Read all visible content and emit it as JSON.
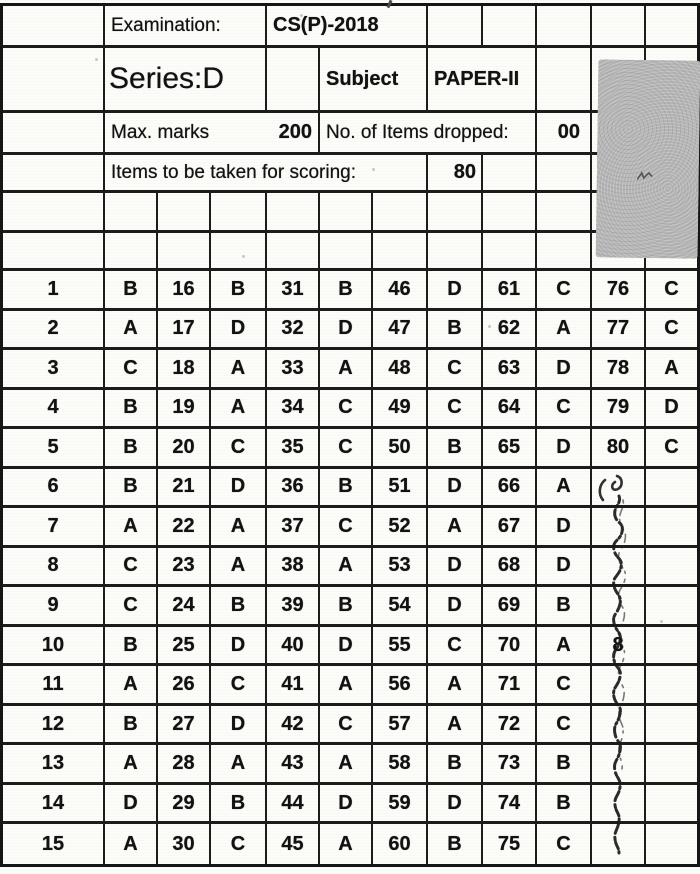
{
  "header": {
    "examination_label": "Examination:",
    "examination_value": "CS(P)-2018",
    "series_label": "Series:D",
    "subject_label": "Subject",
    "subject_value": "PAPER-II",
    "max_marks_label": "Max. marks",
    "max_marks_value": "200",
    "items_dropped_label": "No. of Items dropped:",
    "items_dropped_value": "00",
    "scoring_label": "Items to be taken for scoring:",
    "scoring_value": "80"
  },
  "answer_key": {
    "columns_pattern": [
      "question",
      "answer",
      "question",
      "answer",
      "question",
      "answer",
      "question",
      "answer",
      "question",
      "answer",
      "question",
      "answer"
    ],
    "rows": [
      [
        "1",
        "B",
        "16",
        "B",
        "31",
        "B",
        "46",
        "D",
        "61",
        "C",
        "76",
        "C"
      ],
      [
        "2",
        "A",
        "17",
        "D",
        "32",
        "D",
        "47",
        "B",
        "62",
        "A",
        "77",
        "C"
      ],
      [
        "3",
        "C",
        "18",
        "A",
        "33",
        "A",
        "48",
        "C",
        "63",
        "D",
        "78",
        "A"
      ],
      [
        "4",
        "B",
        "19",
        "A",
        "34",
        "C",
        "49",
        "C",
        "64",
        "C",
        "79",
        "D"
      ],
      [
        "5",
        "B",
        "20",
        "C",
        "35",
        "C",
        "50",
        "B",
        "65",
        "D",
        "80",
        "C"
      ],
      [
        "6",
        "B",
        "21",
        "D",
        "36",
        "B",
        "51",
        "D",
        "66",
        "A",
        "",
        ""
      ],
      [
        "7",
        "A",
        "22",
        "A",
        "37",
        "C",
        "52",
        "A",
        "67",
        "D",
        "",
        ""
      ],
      [
        "8",
        "C",
        "23",
        "A",
        "38",
        "A",
        "53",
        "D",
        "68",
        "D",
        "",
        ""
      ],
      [
        "9",
        "C",
        "24",
        "B",
        "39",
        "B",
        "54",
        "D",
        "69",
        "B",
        "",
        ""
      ],
      [
        "10",
        "B",
        "25",
        "D",
        "40",
        "D",
        "55",
        "C",
        "70",
        "A",
        "8",
        ""
      ],
      [
        "11",
        "A",
        "26",
        "C",
        "41",
        "A",
        "56",
        "A",
        "71",
        "C",
        "",
        ""
      ],
      [
        "12",
        "B",
        "27",
        "D",
        "42",
        "C",
        "57",
        "A",
        "72",
        "C",
        "",
        ""
      ],
      [
        "13",
        "A",
        "28",
        "A",
        "43",
        "A",
        "58",
        "B",
        "73",
        "B",
        "",
        ""
      ],
      [
        "14",
        "D",
        "29",
        "B",
        "44",
        "D",
        "59",
        "D",
        "74",
        "B",
        "",
        ""
      ],
      [
        "15",
        "A",
        "30",
        "C",
        "45",
        "A",
        "60",
        "B",
        "75",
        "C",
        "",
        ""
      ]
    ]
  },
  "colors": {
    "paper": "#fcfcf9",
    "ink": "#161616",
    "grid_line": "#1c1c1c",
    "stain_gray": "#b5b5b5"
  }
}
